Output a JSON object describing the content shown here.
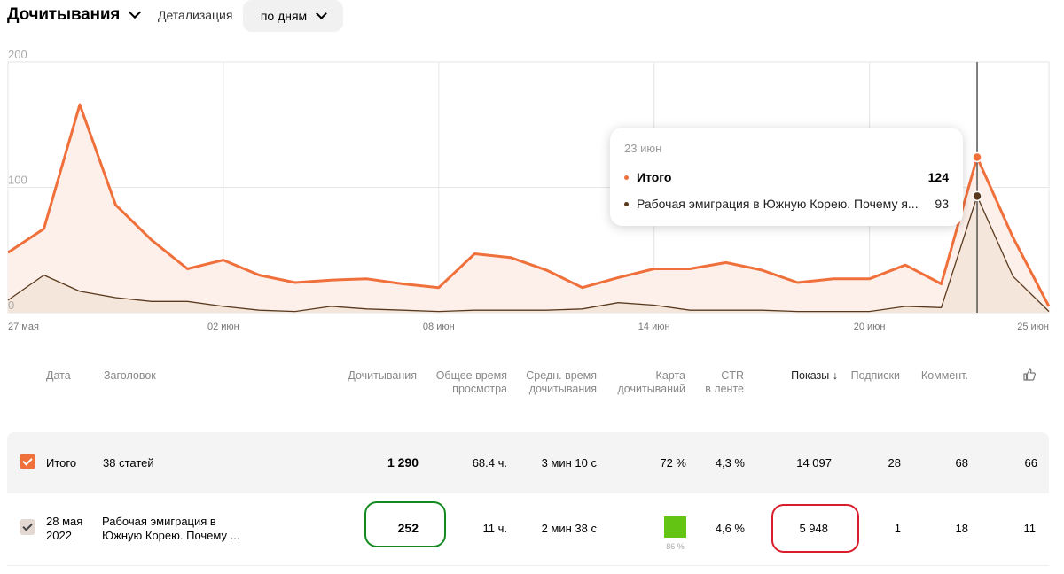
{
  "header": {
    "metric": "Дочитывания",
    "detail_label": "Детализация",
    "period": "по дням"
  },
  "colors": {
    "total": "#f0703c",
    "article": "#5a3a1e",
    "total_fill": "#fdf0ea",
    "article_fill": "#f3e4d8"
  },
  "chart_data": {
    "type": "area",
    "x": [
      "27 мая",
      "28 мая",
      "29 мая",
      "30 мая",
      "31 мая",
      "01 июн",
      "02 июн",
      "03 июн",
      "04 июн",
      "05 июн",
      "06 июн",
      "07 июн",
      "08 июн",
      "09 июн",
      "10 июн",
      "11 июн",
      "12 июн",
      "13 июн",
      "14 июн",
      "15 июн",
      "16 июн",
      "17 июн",
      "18 июн",
      "19 июн",
      "20 июн",
      "21 июн",
      "22 июн",
      "23 июн",
      "24 июн",
      "25 июн"
    ],
    "x_tick_labels": [
      "27 мая",
      "02 июн",
      "08 июн",
      "14 июн",
      "20 июн",
      "25 июн"
    ],
    "y_tick_labels": [
      "200",
      "100",
      "0"
    ],
    "ylim": [
      0,
      200
    ],
    "series": [
      {
        "name": "Итого",
        "values": [
          48,
          67,
          166,
          86,
          58,
          35,
          42,
          30,
          24,
          26,
          27,
          23,
          20,
          47,
          44,
          34,
          20,
          28,
          35,
          35,
          40,
          34,
          24,
          27,
          27,
          38,
          23,
          124,
          60,
          5
        ]
      },
      {
        "name": "Рабочая эмиграция в Южную Корею. Почему я...",
        "values": [
          10,
          30,
          17,
          12,
          9,
          9,
          5,
          2,
          1,
          5,
          3,
          2,
          1,
          2,
          2,
          2,
          3,
          8,
          6,
          2,
          2,
          2,
          1,
          1,
          1,
          5,
          4,
          93,
          29,
          1
        ]
      }
    ],
    "grid": true,
    "highlight_index": 27
  },
  "tooltip": {
    "date": "23 июн",
    "rows": [
      {
        "name": "Итого",
        "value": "124"
      },
      {
        "name": "Рабочая эмиграция в Южную Корею. Почему я...",
        "value": "93"
      }
    ]
  },
  "table": {
    "headers": {
      "date": "Дата",
      "title": "Заголовок",
      "reads": "Дочитывания",
      "total_time_1": "Общее время",
      "total_time_2": "просмотра",
      "avg_time_1": "Средн. время",
      "avg_time_2": "дочитывания",
      "map_1": "Карта",
      "map_2": "дочитываний",
      "ctr_1": "CTR",
      "ctr_2": "в ленте",
      "views": "Показы ↓",
      "subs": "Подписки",
      "comments": "Коммент."
    },
    "total": {
      "label": "Итого",
      "articles": "38 статей",
      "reads": "1 290",
      "total_time": "68.4 ч.",
      "avg_time": "3 мин 10 с",
      "map": "72 %",
      "ctr": "4,3 %",
      "views": "14 097",
      "subs": "28",
      "comments": "68",
      "likes": "66"
    },
    "rows": [
      {
        "date_1": "28 мая",
        "date_2": "2022",
        "title_1": "Рабочая эмиграция в",
        "title_2": "Южную Корею. Почему ...",
        "reads": "252",
        "total_time": "11 ч.",
        "avg_time": "2 мин 38 с",
        "map_pct": "86 %",
        "ctr": "4,6 %",
        "views": "5 948",
        "subs": "1",
        "comments": "18",
        "likes": "11"
      }
    ]
  }
}
